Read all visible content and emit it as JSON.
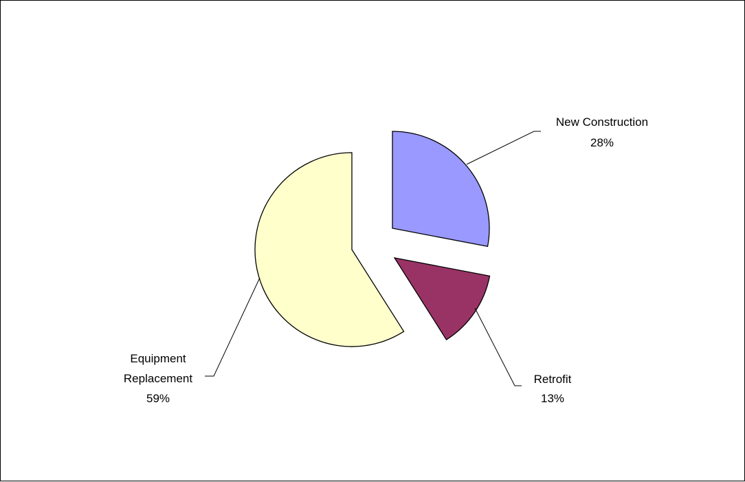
{
  "chart_data": {
    "type": "pie",
    "exploded": true,
    "start_angle_deg": 0,
    "direction": "clockwise",
    "slices": [
      {
        "label": "New Construction",
        "value": 28,
        "value_label": "28%",
        "color": "#9999FF"
      },
      {
        "label": "Retrofit",
        "value": 13,
        "value_label": "13%",
        "color": "#993366"
      },
      {
        "label": "Equipment",
        "label_line2": "Replacement",
        "value": 59,
        "value_label": "59%",
        "color": "#FFFFCC"
      }
    ],
    "slice_outline_color": "#000000",
    "leader_line_color": "#000000"
  }
}
